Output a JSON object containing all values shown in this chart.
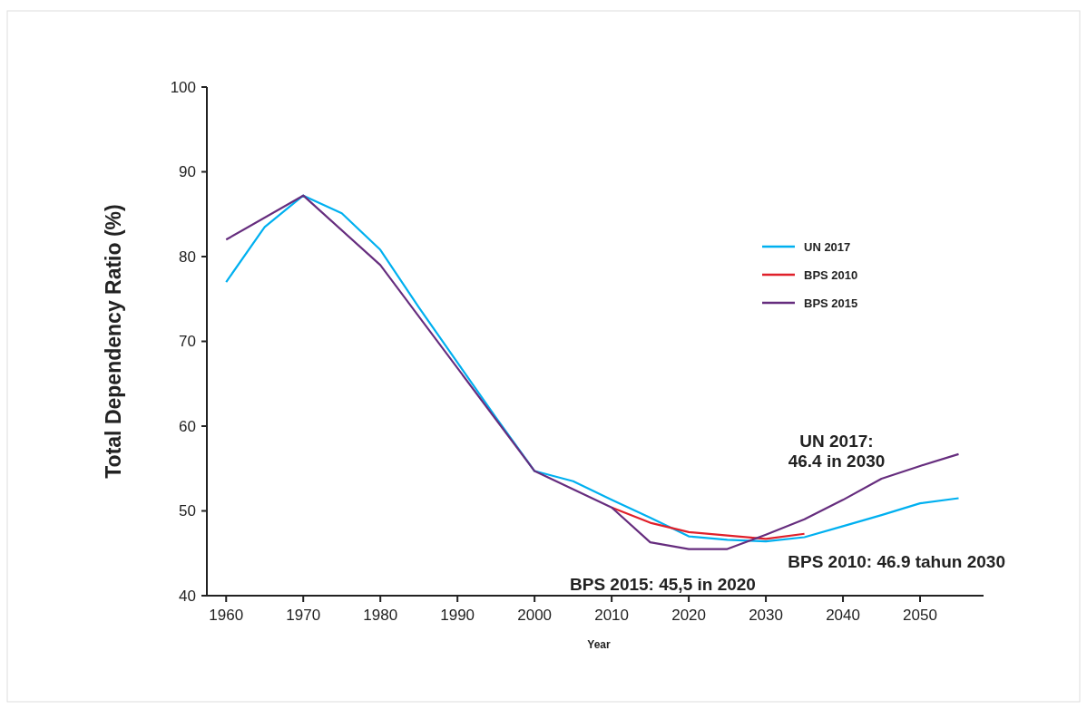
{
  "chart_data": {
    "type": "line",
    "xlabel": "Year",
    "ylabel": "Total Dependency Ratio (%)",
    "xlim": [
      1957.5,
      2058
    ],
    "ylim": [
      40,
      100
    ],
    "yticks": [
      40,
      50,
      60,
      70,
      80,
      90,
      100
    ],
    "xticks": [
      1960,
      1970,
      1980,
      1990,
      2000,
      2010,
      2020,
      2030,
      2040,
      2050
    ],
    "grid": false,
    "legend": "top right",
    "marker": "none",
    "line_style": "solid",
    "series": [
      {
        "name": "UN 2017",
        "color": "#00b0f0",
        "x": [
          1960,
          1965,
          1970,
          1975,
          1980,
          1985,
          1990,
          1995,
          2000,
          2005,
          2010,
          2015,
          2020,
          2025,
          2030,
          2035,
          2040,
          2045,
          2050,
          2055
        ],
        "values": [
          77,
          83.5,
          87.2,
          85.1,
          80.8,
          74,
          67.5,
          61,
          54.7,
          53.5,
          51.3,
          49.2,
          47,
          46.6,
          46.4,
          46.9,
          48.2,
          49.5,
          50.9,
          51.5
        ]
      },
      {
        "name": "BPS 2010",
        "color": "#e0202a",
        "x": [
          2010,
          2015,
          2020,
          2025,
          2030,
          2035
        ],
        "values": [
          50.4,
          48.6,
          47.5,
          47.1,
          46.7,
          47.3
        ]
      },
      {
        "name": "BPS 2015",
        "color": "#662d7e",
        "x": [
          1960,
          1970,
          1980,
          2000,
          2010,
          2015,
          2020,
          2025,
          2030,
          2035,
          2040,
          2045,
          2050,
          2055
        ],
        "values": [
          82,
          87.2,
          79,
          54.7,
          50.4,
          46.3,
          45.5,
          45.5,
          47.2,
          49,
          51.3,
          53.8,
          55.3,
          56.7
        ]
      }
    ],
    "annotations": [
      "UN 2017:\n46.4 in 2030",
      "BPS 2010: 46.9 tahun 2030",
      "BPS 2015: 45,5 in 2020"
    ]
  }
}
